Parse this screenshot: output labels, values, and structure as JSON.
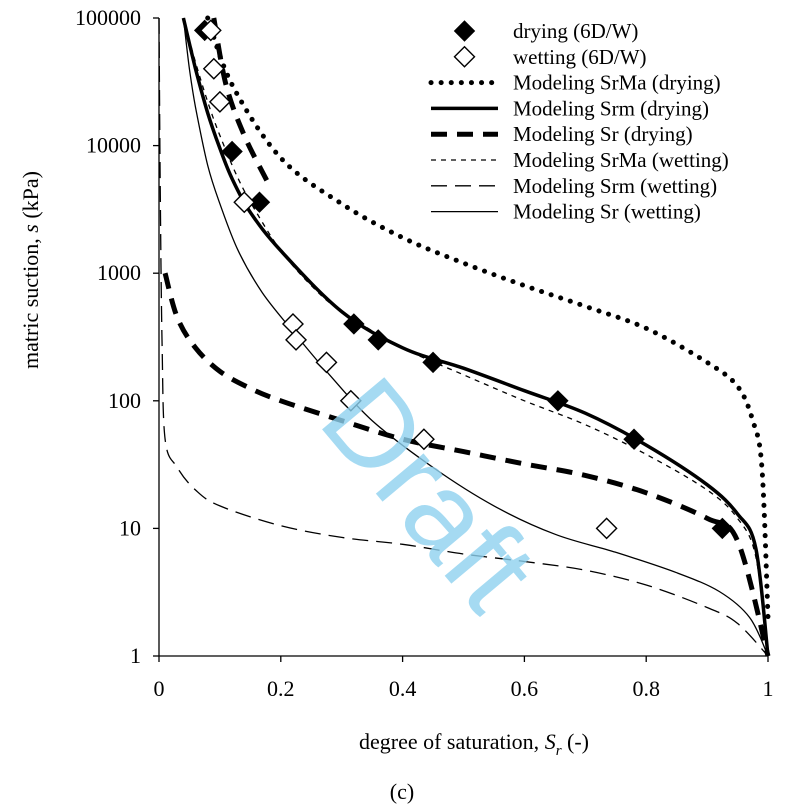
{
  "chart_data": {
    "type": "scatter",
    "xlabel": "degree of saturation, S_r (-)",
    "xlabel_parts": {
      "prefix": "degree of saturation, ",
      "var": "S",
      "sub": "r",
      "suffix": " (-)"
    },
    "ylabel": "matric suction, s (kPa)",
    "ylabel_parts": {
      "prefix": "matric suction, ",
      "var": "s",
      "suffix": " (kPa)"
    },
    "xlim": [
      0,
      1
    ],
    "ylim": [
      1,
      100000
    ],
    "y_scale": "log",
    "x_ticks": [
      0,
      0.2,
      0.4,
      0.6,
      0.8,
      1
    ],
    "x_tick_labels": [
      "0",
      "0.2",
      "0.4",
      "0.6",
      "0.8",
      "1"
    ],
    "y_ticks": [
      1,
      10,
      100,
      1000,
      10000,
      100000
    ],
    "y_tick_labels": [
      "1",
      "10",
      "100",
      "1000",
      "10000",
      "100000"
    ],
    "grid": false,
    "legend_position": "top-right",
    "caption": "(c)",
    "watermark": "Draft",
    "series": [
      {
        "name": "drying (6D/W)",
        "kind": "marker",
        "marker": "diamond-filled",
        "x": [
          0.075,
          0.09,
          0.1,
          0.12,
          0.165,
          0.32,
          0.36,
          0.45,
          0.655,
          0.78,
          0.925
        ],
        "y": [
          80000,
          40000,
          22000,
          9000,
          3600,
          400,
          300,
          200,
          100,
          50,
          10
        ]
      },
      {
        "name": "wetting (6D/W)",
        "kind": "marker",
        "marker": "diamond-open",
        "x": [
          0.085,
          0.09,
          0.1,
          0.14,
          0.22,
          0.225,
          0.275,
          0.315,
          0.435,
          0.735
        ],
        "y": [
          80000,
          40000,
          22000,
          3600,
          400,
          300,
          200,
          100,
          50,
          10
        ]
      },
      {
        "name": "Modeling SrMa (drying)",
        "kind": "line",
        "style": "dotted-thick",
        "x": [
          0.08,
          0.12,
          0.2,
          0.3,
          0.4,
          0.5,
          0.6,
          0.7,
          0.8,
          0.9,
          0.95,
          0.975,
          0.99,
          1.0
        ],
        "y": [
          100000,
          30000,
          8000,
          3500,
          1900,
          1200,
          800,
          550,
          370,
          200,
          130,
          70,
          30,
          2
        ]
      },
      {
        "name": "Modeling Srm (drying)",
        "kind": "line",
        "style": "solid-thick",
        "x": [
          0.04,
          0.06,
          0.08,
          0.1,
          0.12,
          0.15,
          0.2,
          0.3,
          0.4,
          0.5,
          0.6,
          0.7,
          0.8,
          0.9,
          0.95,
          0.98,
          1.0
        ],
        "y": [
          100000,
          40000,
          18000,
          9500,
          5500,
          3000,
          1500,
          500,
          260,
          180,
          120,
          80,
          45,
          22,
          13,
          7,
          1
        ]
      },
      {
        "name": "Modeling Sr (drying)",
        "kind": "line",
        "style": "dashed-thick",
        "x": [
          0.09,
          0.11,
          0.14,
          0.18,
          0.0,
          0.01,
          0.03,
          0.06,
          0.1,
          0.15,
          0.2,
          0.3,
          0.4,
          0.5,
          0.6,
          0.7,
          0.8,
          0.9,
          0.95,
          1.0
        ],
        "y": [
          100000,
          30000,
          12000,
          5000,
          null,
          1000,
          450,
          260,
          170,
          125,
          100,
          70,
          50,
          40,
          32,
          26,
          19,
          12,
          8,
          1
        ]
      },
      {
        "name": "Modeling SrMa (wetting)",
        "kind": "line",
        "style": "dashed-thin",
        "x": [
          0.04,
          0.06,
          0.08,
          0.1,
          0.13,
          0.16,
          0.2,
          0.25,
          0.3,
          0.4,
          0.5,
          0.6,
          0.7,
          0.8,
          0.9,
          0.95,
          0.98,
          1.0
        ],
        "y": [
          100000,
          45000,
          22000,
          12000,
          5500,
          3000,
          1500,
          800,
          500,
          260,
          160,
          100,
          65,
          38,
          20,
          12,
          6,
          1
        ]
      },
      {
        "name": "Modeling Srm (wetting)",
        "kind": "line",
        "style": "long-dash-thin",
        "x": [
          0.0,
          0.002,
          0.005,
          0.01,
          0.03,
          0.06,
          0.1,
          0.2,
          0.3,
          0.4,
          0.5,
          0.6,
          0.7,
          0.8,
          0.9,
          0.95,
          1.0
        ],
        "y": [
          100000,
          5000,
          300,
          50,
          30,
          20,
          15,
          10.5,
          8.5,
          7.5,
          6.3,
          5.5,
          4.7,
          3.6,
          2.4,
          1.8,
          1
        ]
      },
      {
        "name": "Modeling Sr (wetting)",
        "kind": "line",
        "style": "solid-thin",
        "x": [
          0.04,
          0.05,
          0.06,
          0.08,
          0.1,
          0.13,
          0.17,
          0.22,
          0.28,
          0.35,
          0.45,
          0.55,
          0.65,
          0.75,
          0.85,
          0.92,
          0.97,
          1.0
        ],
        "y": [
          100000,
          40000,
          20000,
          7000,
          3500,
          1500,
          700,
          350,
          160,
          70,
          30,
          15,
          9,
          6.5,
          4.5,
          3.2,
          2,
          1
        ]
      }
    ]
  }
}
